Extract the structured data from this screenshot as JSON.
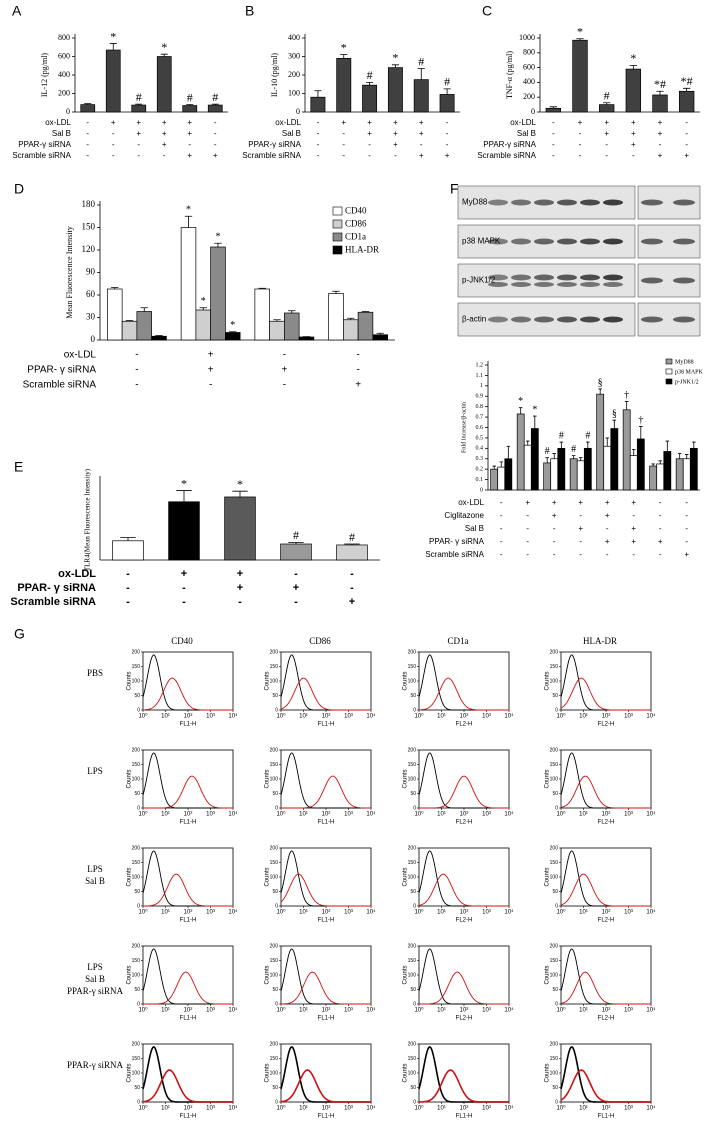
{
  "chart_data": [
    {
      "type": "bar",
      "label": "A",
      "ylabel": "IL-12 (pg/ml)",
      "color": "#404040",
      "values": [
        80,
        670,
        75,
        600,
        70,
        75
      ],
      "errors": [
        10,
        70,
        10,
        25,
        10,
        10
      ],
      "annotations": [
        null,
        "*",
        "#",
        "*",
        "#",
        "#"
      ],
      "ylim": [
        0,
        800
      ],
      "yticks": [
        0,
        200,
        400,
        600,
        800
      ],
      "conditions": [
        {
          "name": "ox-LDL",
          "values": [
            "-",
            "+",
            "+",
            "+",
            "+",
            "-"
          ]
        },
        {
          "name": "Sal B",
          "values": [
            "-",
            "-",
            "+",
            "+",
            "+",
            "-"
          ]
        },
        {
          "name": "PPAR-γ siRNA",
          "values": [
            "-",
            "-",
            "-",
            "+",
            "-",
            "-"
          ]
        },
        {
          "name": "Scramble siRNA",
          "values": [
            "-",
            "-",
            "-",
            "-",
            "+",
            "+"
          ]
        }
      ]
    },
    {
      "type": "bar",
      "label": "B",
      "ylabel": "IL-10 (pg/ml)",
      "color": "#404040",
      "values": [
        80,
        290,
        145,
        240,
        175,
        95
      ],
      "errors": [
        35,
        20,
        15,
        15,
        60,
        30
      ],
      "annotations": [
        null,
        "*",
        "#",
        "*",
        "#",
        "#"
      ],
      "ylim": [
        0,
        400
      ],
      "yticks": [
        0,
        100,
        200,
        300,
        400
      ],
      "conditions": [
        {
          "name": "ox-LDL",
          "values": [
            "-",
            "+",
            "+",
            "+",
            "+",
            "-"
          ]
        },
        {
          "name": "Sal B",
          "values": [
            "-",
            "-",
            "+",
            "+",
            "+",
            "-"
          ]
        },
        {
          "name": "PPAR-γ siRNA",
          "values": [
            "-",
            "-",
            "-",
            "+",
            "-",
            "-"
          ]
        },
        {
          "name": "Scramble siRNA",
          "values": [
            "-",
            "-",
            "-",
            "-",
            "+",
            "+"
          ]
        }
      ]
    },
    {
      "type": "bar",
      "label": "C",
      "ylabel": "TNF-α (pg/ml)",
      "color": "#404040",
      "values": [
        50,
        970,
        100,
        580,
        230,
        280
      ],
      "errors": [
        20,
        20,
        25,
        50,
        50,
        40
      ],
      "annotations": [
        null,
        "*",
        "#",
        "*",
        "*#",
        "*#"
      ],
      "ylim": [
        0,
        1000
      ],
      "yticks": [
        0,
        200,
        400,
        600,
        800,
        1000
      ],
      "conditions": [
        {
          "name": "ox-LDL",
          "values": [
            "-",
            "+",
            "+",
            "+",
            "+",
            "-"
          ]
        },
        {
          "name": "Sal B",
          "values": [
            "-",
            "-",
            "+",
            "+",
            "+",
            "-"
          ]
        },
        {
          "name": "PPAR-γ siRNA",
          "values": [
            "-",
            "-",
            "-",
            "+",
            "-",
            "-"
          ]
        },
        {
          "name": "Scramble siRNA",
          "values": [
            "-",
            "-",
            "-",
            "-",
            "+",
            "+"
          ]
        }
      ]
    },
    {
      "type": "bar",
      "label": "D",
      "ylabel": "Mean Fluorescence Intensity",
      "legend": "top-right",
      "series": [
        {
          "name": "CD40",
          "color": "#ffffff",
          "values": [
            68,
            150,
            68,
            62
          ],
          "errors": [
            2,
            15,
            1,
            3
          ],
          "annotations": [
            null,
            "*",
            null,
            null
          ]
        },
        {
          "name": "CD86",
          "color": "#cfcfcf",
          "values": [
            25,
            40,
            25,
            27
          ],
          "errors": [
            1,
            3,
            2,
            2
          ],
          "annotations": [
            null,
            "*",
            null,
            null
          ]
        },
        {
          "name": "CD1a",
          "color": "#8a8a8a",
          "values": [
            38,
            124,
            36,
            37
          ],
          "errors": [
            5,
            5,
            3,
            1
          ],
          "annotations": [
            null,
            "*",
            null,
            null
          ]
        },
        {
          "name": "HLA-DR",
          "color": "#000000",
          "values": [
            5,
            10,
            4,
            7
          ],
          "errors": [
            1,
            1,
            0.5,
            2
          ],
          "annotations": [
            null,
            "*",
            null,
            null
          ]
        }
      ],
      "ylim": [
        0,
        180
      ],
      "yticks": [
        0,
        30,
        60,
        90,
        120,
        150,
        180
      ],
      "conditions": [
        {
          "name": "ox-LDL",
          "values": [
            "-",
            "+",
            "-",
            "-"
          ]
        },
        {
          "name": "PPAR- γ siRNA",
          "values": [
            "-",
            "+",
            "+",
            "-"
          ]
        },
        {
          "name": "Scramble siRNA",
          "values": [
            "-",
            "-",
            "-",
            "+"
          ]
        }
      ]
    },
    {
      "type": "bar",
      "label": "E",
      "ylabel": "TLR4(Mean Fluorescence Intensity)",
      "colors": [
        "#ffffff",
        "#000000",
        "#5a5a5a",
        "#9a9a9a",
        "#d0d0d0"
      ],
      "values": [
        60,
        182,
        197,
        50,
        47
      ],
      "errors": [
        10,
        35,
        18,
        5,
        3
      ],
      "annotations": [
        null,
        "*",
        "*",
        "#",
        "#"
      ],
      "ylim": [
        0,
        250
      ],
      "conditions": [
        {
          "name": "ox-LDL",
          "values": [
            "-",
            "+",
            "+",
            "-",
            "-"
          ]
        },
        {
          "name": "PPAR- γ siRNA",
          "values": [
            "-",
            "-",
            "+",
            "+",
            "-"
          ]
        },
        {
          "name": "Scramble siRNA",
          "values": [
            "-",
            "-",
            "-",
            "-",
            "+"
          ]
        }
      ]
    },
    {
      "type": "bar",
      "label": "F",
      "ylabel": "Fold Increase/β-actin",
      "legend": "top-right",
      "series": [
        {
          "name": "MyD88",
          "color": "#9a9a9a",
          "values": [
            0.2,
            0.73,
            0.26,
            0.3,
            0.92,
            0.77,
            0.23,
            0.3
          ],
          "errors": [
            0.03,
            0.06,
            0.05,
            0.03,
            0.05,
            0.08,
            0.02,
            0.05
          ],
          "annotations": [
            null,
            "*",
            "#",
            "#",
            "§",
            "†",
            null,
            null
          ]
        },
        {
          "name": "p38 MAPK",
          "color": "#ffffff",
          "values": [
            0.22,
            0.43,
            0.3,
            0.28,
            0.42,
            0.33,
            0.25,
            0.3
          ],
          "errors": [
            0.05,
            0.04,
            0.05,
            0.03,
            0.08,
            0.06,
            0.03,
            0.04
          ]
        },
        {
          "name": "p-JNK1/2",
          "color": "#000000",
          "values": [
            0.3,
            0.59,
            0.4,
            0.4,
            0.59,
            0.49,
            0.37,
            0.4
          ],
          "errors": [
            0.12,
            0.12,
            0.06,
            0.06,
            0.08,
            0.12,
            0.1,
            0.06
          ],
          "annotations": [
            null,
            "*",
            "#",
            "#",
            "§",
            "†",
            null,
            null
          ]
        }
      ],
      "ylim": [
        0,
        1.2
      ],
      "yticks": [
        0,
        0.1,
        0.2,
        0.3,
        0.4,
        0.5,
        0.6,
        0.7,
        0.8,
        0.9,
        1,
        1.1,
        1.2
      ],
      "conditions": [
        {
          "name": "ox-LDL",
          "values": [
            "-",
            "+",
            "+",
            "+",
            "+",
            "+",
            "-",
            "-"
          ]
        },
        {
          "name": "Ciglitazone",
          "values": [
            "-",
            "-",
            "+",
            "-",
            "+",
            "-",
            "-",
            "-"
          ]
        },
        {
          "name": "Sal B",
          "values": [
            "-",
            "-",
            "-",
            "+",
            "-",
            "+",
            "-",
            "-"
          ]
        },
        {
          "name": "PPAR- γ siRNA",
          "values": [
            "-",
            "-",
            "-",
            "-",
            "+",
            "+",
            "+",
            "-"
          ]
        },
        {
          "name": "Scramble siRNA",
          "values": [
            "-",
            "-",
            "-",
            "-",
            "-",
            "-",
            "-",
            "+"
          ]
        }
      ]
    }
  ],
  "blot": {
    "proteins": [
      "MyD88",
      "p38 MAPK",
      "p-JNK1/2",
      "β-actin"
    ]
  },
  "flow": {
    "label": "G",
    "columns": [
      "CD40",
      "CD86",
      "CD1a",
      "HLA-DR"
    ],
    "ylabel": "Counts",
    "xscale": "log",
    "xlim": [
      1,
      10000
    ],
    "xticks": [
      {
        "value": 1,
        "label": "10⁰"
      },
      {
        "value": 10,
        "label": "10¹"
      },
      {
        "value": 100,
        "label": "10²"
      },
      {
        "value": 1000,
        "label": "10³"
      },
      {
        "value": 10000,
        "label": "10⁴"
      }
    ],
    "ylim": [
      0,
      200
    ],
    "yticks": [
      0,
      50,
      100,
      150,
      200
    ],
    "isotype_peak": 3,
    "isotype_height": 190,
    "stain_height": 110,
    "rows": [
      {
        "label": [
          "PBS"
        ],
        "xlabels": [
          "FL1-H",
          "FL1-H",
          "FL2-H",
          "FL2-H"
        ],
        "peaks": [
          20,
          10,
          20,
          8
        ]
      },
      {
        "label": [
          "LPS"
        ],
        "xlabels": [
          "FL1-H",
          "FL1-H",
          "FL2-H",
          "FL2-H"
        ],
        "peaks": [
          150,
          200,
          100,
          12
        ]
      },
      {
        "label": [
          "LPS",
          "Sal B"
        ],
        "xlabels": [
          "FL1-H",
          "FL1-H",
          "FL2-H",
          "FL2-H"
        ],
        "peaks": [
          30,
          6,
          12,
          10
        ]
      },
      {
        "label": [
          "LPS",
          "Sal B",
          "PPAR-γ siRNA"
        ],
        "xlabels": [
          "FL1-H",
          "FL1-H",
          "FL2-H",
          "FL2-H"
        ],
        "peaks": [
          80,
          25,
          50,
          12
        ]
      },
      {
        "label": [
          "PPAR-γ siRNA"
        ],
        "xlabels": [
          "FL1-H",
          "FL1-H",
          "FL1-H",
          "FL1-H"
        ],
        "peaks": [
          15,
          15,
          25,
          8
        ]
      }
    ]
  }
}
